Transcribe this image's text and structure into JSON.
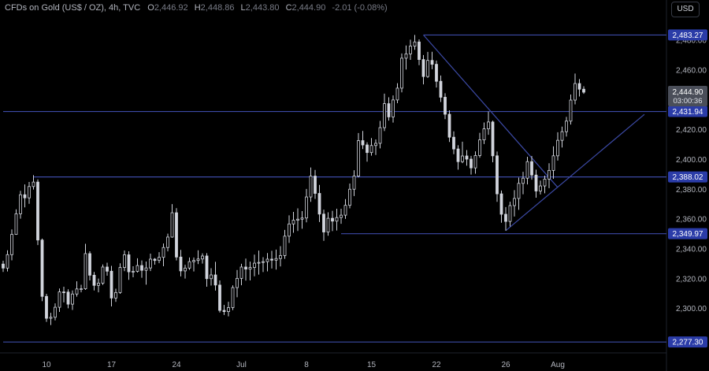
{
  "header": {
    "symbol": "CFDs on Gold (US$ / OZ), 4h, TVC",
    "open_label": "O",
    "open": "2,446.92",
    "high_label": "H",
    "high": "2,448.86",
    "low_label": "L",
    "low": "2,443.80",
    "close_label": "C",
    "close": "2,444.90",
    "change": "-2.01 (-0.08%)"
  },
  "currency_button": "USD",
  "colors": {
    "background": "#000000",
    "candle_up": "#d1d4dc",
    "candle_down": "#d1d4dc",
    "level_line": "#3c4aa6",
    "level_badge": "#2b3ca8",
    "price_badge": "#4a4e59",
    "axis_text": "#b2b5be"
  },
  "chart_data": {
    "type": "candlestick",
    "title": "CFDs on Gold (US$ / OZ), 4h, TVC",
    "ylim": [
      2270,
      2493
    ],
    "y_ticks": [
      2300,
      2320,
      2340,
      2360,
      2380,
      2400,
      2420,
      2440,
      2460,
      2480
    ],
    "y_tick_labels": [
      "2,300.00",
      "2,320.00",
      "2,340.00",
      "2,360.00",
      "2,380.00",
      "2,400.00",
      "2,420.00",
      "2,440.00",
      "2,460.00",
      "2,480.00"
    ],
    "x_ticks": [
      {
        "label": "10",
        "bar": 10
      },
      {
        "label": "17",
        "bar": 25
      },
      {
        "label": "24",
        "bar": 40
      },
      {
        "label": "Jul",
        "bar": 55
      },
      {
        "label": "8",
        "bar": 70
      },
      {
        "label": "15",
        "bar": 85
      },
      {
        "label": "22",
        "bar": 100
      },
      {
        "label": "26",
        "bar": 116
      },
      {
        "label": "Aug",
        "bar": 128
      }
    ],
    "bar_count": 135,
    "last_price": "2,444.90",
    "countdown": "03:00:36",
    "levels": [
      {
        "value": 2483.27,
        "label": "2,483.27",
        "from_bar": 97
      },
      {
        "value": 2431.94,
        "label": "2,431.94",
        "from_bar": 0
      },
      {
        "value": 2388.02,
        "label": "2,388.02",
        "from_bar": 7
      },
      {
        "value": 2349.97,
        "label": "2,349.97",
        "from_bar": 78
      },
      {
        "value": 2277.3,
        "label": "2,277.30",
        "from_bar": 0
      }
    ],
    "trendlines": [
      {
        "from": {
          "bar": 97,
          "value": 2483.27
        },
        "to": {
          "bar": 128,
          "value": 2381
        }
      },
      {
        "from": {
          "bar": 116,
          "value": 2352
        },
        "to": {
          "bar": 148,
          "value": 2430
        }
      }
    ],
    "ohlc": [
      [
        2329.6,
        2331.8,
        2324.3,
        2326.9
      ],
      [
        2326.9,
        2338.8,
        2324.6,
        2335.9
      ],
      [
        2335.9,
        2352.8,
        2332.1,
        2349.5
      ],
      [
        2349.5,
        2366.3,
        2349.2,
        2363.3
      ],
      [
        2363.3,
        2378.7,
        2360.0,
        2376.1
      ],
      [
        2376.1,
        2383.0,
        2367.6,
        2374.0
      ],
      [
        2374.0,
        2384.7,
        2370.0,
        2381.6
      ],
      [
        2381.6,
        2389.2,
        2379.6,
        2384.6
      ],
      [
        2384.6,
        2386.4,
        2342.3,
        2345.7
      ],
      [
        2345.7,
        2346.7,
        2304.7,
        2307.9
      ],
      [
        2307.9,
        2309.6,
        2290.8,
        2293.2
      ],
      [
        2293.2,
        2296.9,
        2288.7,
        2293.9
      ],
      [
        2293.9,
        2303.2,
        2291.8,
        2300.6
      ],
      [
        2300.6,
        2313.2,
        2297.5,
        2310.9
      ],
      [
        2310.9,
        2314.4,
        2303.9,
        2310.8
      ],
      [
        2310.8,
        2312.7,
        2299.9,
        2302.7
      ],
      [
        2302.7,
        2311.9,
        2298.8,
        2309.5
      ],
      [
        2309.5,
        2318.0,
        2307.7,
        2312.9
      ],
      [
        2312.9,
        2315.7,
        2310.6,
        2313.0
      ],
      [
        2313.0,
        2343.2,
        2312.3,
        2336.6
      ],
      [
        2336.6,
        2338.2,
        2318.6,
        2322.1
      ],
      [
        2322.1,
        2324.3,
        2311.9,
        2315.3
      ],
      [
        2315.3,
        2319.9,
        2310.6,
        2316.8
      ],
      [
        2316.8,
        2329.3,
        2315.6,
        2327.6
      ],
      [
        2327.6,
        2330.5,
        2321.8,
        2324.8
      ],
      [
        2324.8,
        2328.4,
        2301.2,
        2306.8
      ],
      [
        2306.8,
        2313.1,
        2304.2,
        2310.5
      ],
      [
        2310.5,
        2330.1,
        2309.6,
        2327.3
      ],
      [
        2327.3,
        2338.7,
        2324.8,
        2335.8
      ],
      [
        2335.8,
        2338.2,
        2319.0,
        2324.4
      ],
      [
        2324.4,
        2328.1,
        2320.7,
        2324.7
      ],
      [
        2324.7,
        2333.5,
        2323.9,
        2328.6
      ],
      [
        2328.6,
        2332.0,
        2320.4,
        2325.4
      ],
      [
        2325.4,
        2331.3,
        2315.8,
        2327.0
      ],
      [
        2327.0,
        2336.6,
        2324.9,
        2332.9
      ],
      [
        2332.9,
        2333.6,
        2329.2,
        2332.0
      ],
      [
        2332.0,
        2337.6,
        2330.2,
        2334.1
      ],
      [
        2334.1,
        2343.4,
        2328.1,
        2340.7
      ],
      [
        2340.7,
        2350.0,
        2338.1,
        2347.7
      ],
      [
        2347.7,
        2369.8,
        2347.3,
        2364.0
      ],
      [
        2364.0,
        2367.1,
        2332.0,
        2334.3
      ],
      [
        2334.3,
        2339.1,
        2321.3,
        2325.0
      ],
      [
        2325.0,
        2329.1,
        2319.9,
        2326.9
      ],
      [
        2326.9,
        2334.0,
        2325.7,
        2331.2
      ],
      [
        2331.2,
        2334.0,
        2324.6,
        2332.0
      ],
      [
        2332.0,
        2338.8,
        2329.6,
        2333.0
      ],
      [
        2333.0,
        2336.8,
        2329.9,
        2335.0
      ],
      [
        2335.0,
        2336.9,
        2314.4,
        2319.8
      ],
      [
        2319.8,
        2326.8,
        2315.2,
        2322.3
      ],
      [
        2322.3,
        2331.1,
        2311.8,
        2315.5
      ],
      [
        2315.5,
        2318.6,
        2297.1,
        2298.5
      ],
      [
        2298.5,
        2302.2,
        2295.4,
        2297.7
      ],
      [
        2297.7,
        2304.3,
        2294.5,
        2300.4
      ],
      [
        2300.4,
        2315.3,
        2298.7,
        2313.8
      ],
      [
        2313.8,
        2325.6,
        2307.3,
        2320.0
      ],
      [
        2320.0,
        2329.8,
        2315.4,
        2327.6
      ],
      [
        2327.6,
        2333.3,
        2318.5,
        2326.2
      ],
      [
        2326.2,
        2331.2,
        2318.6,
        2327.3
      ],
      [
        2327.3,
        2335.9,
        2321.4,
        2330.2
      ],
      [
        2330.2,
        2338.6,
        2322.5,
        2330.7
      ],
      [
        2330.7,
        2334.2,
        2324.2,
        2331.2
      ],
      [
        2331.2,
        2337.0,
        2324.7,
        2332.9
      ],
      [
        2332.9,
        2338.5,
        2326.6,
        2332.2
      ],
      [
        2332.2,
        2339.3,
        2325.9,
        2333.3
      ],
      [
        2333.3,
        2341.6,
        2328.0,
        2335.3
      ],
      [
        2335.3,
        2352.5,
        2333.1,
        2348.3
      ],
      [
        2348.3,
        2362.3,
        2343.8,
        2356.5
      ],
      [
        2356.5,
        2364.6,
        2350.6,
        2359.0
      ],
      [
        2359.0,
        2367.0,
        2351.8,
        2359.7
      ],
      [
        2359.7,
        2365.1,
        2353.3,
        2360.5
      ],
      [
        2360.5,
        2380.0,
        2357.6,
        2374.6
      ],
      [
        2374.6,
        2394.4,
        2371.3,
        2388.6
      ],
      [
        2388.6,
        2392.7,
        2373.3,
        2377.0
      ],
      [
        2377.0,
        2382.7,
        2357.8,
        2363.1
      ],
      [
        2363.1,
        2366.1,
        2345.2,
        2351.1
      ],
      [
        2351.1,
        2364.3,
        2348.6,
        2360.3
      ],
      [
        2360.3,
        2365.3,
        2351.7,
        2358.4
      ],
      [
        2358.4,
        2366.7,
        2352.1,
        2360.8
      ],
      [
        2360.8,
        2366.7,
        2356.6,
        2362.4
      ],
      [
        2362.4,
        2373.2,
        2359.9,
        2369.0
      ],
      [
        2369.0,
        2383.6,
        2367.0,
        2379.8
      ],
      [
        2379.8,
        2392.5,
        2375.2,
        2388.6
      ],
      [
        2388.6,
        2417.5,
        2387.7,
        2412.4
      ],
      [
        2412.4,
        2418.9,
        2406.7,
        2409.5
      ],
      [
        2409.5,
        2411.3,
        2398.3,
        2404.4
      ],
      [
        2404.4,
        2414.1,
        2402.3,
        2409.1
      ],
      [
        2409.1,
        2413.2,
        2402.8,
        2410.6
      ],
      [
        2410.6,
        2425.6,
        2407.2,
        2421.1
      ],
      [
        2421.1,
        2443.9,
        2418.8,
        2437.2
      ],
      [
        2437.2,
        2441.5,
        2425.8,
        2428.3
      ],
      [
        2428.3,
        2442.7,
        2424.5,
        2439.7
      ],
      [
        2439.7,
        2450.9,
        2437.5,
        2447.6
      ],
      [
        2447.6,
        2470.9,
        2444.8,
        2467.7
      ],
      [
        2467.7,
        2476.2,
        2460.1,
        2470.6
      ],
      [
        2470.6,
        2480.1,
        2466.6,
        2475.8
      ],
      [
        2475.8,
        2483.3,
        2473.3,
        2478.6
      ],
      [
        2478.6,
        2480.3,
        2463.0,
        2466.8
      ],
      [
        2466.8,
        2469.8,
        2450.1,
        2455.4
      ],
      [
        2455.4,
        2471.9,
        2454.5,
        2466.2
      ],
      [
        2466.2,
        2472.0,
        2460.3,
        2463.6
      ],
      [
        2463.6,
        2466.1,
        2448.0,
        2452.2
      ],
      [
        2452.2,
        2456.1,
        2438.3,
        2441.5
      ],
      [
        2441.5,
        2444.2,
        2426.8,
        2430.1
      ],
      [
        2430.1,
        2432.7,
        2411.5,
        2414.7
      ],
      [
        2414.7,
        2418.6,
        2403.3,
        2406.8
      ],
      [
        2406.8,
        2409.3,
        2392.9,
        2398.3
      ],
      [
        2398.3,
        2411.7,
        2397.3,
        2402.1
      ],
      [
        2402.1,
        2406.1,
        2395.6,
        2400.0
      ],
      [
        2400.0,
        2402.2,
        2389.6,
        2394.1
      ],
      [
        2394.1,
        2405.2,
        2390.2,
        2402.4
      ],
      [
        2402.4,
        2417.6,
        2400.9,
        2412.9
      ],
      [
        2412.9,
        2424.6,
        2410.1,
        2420.3
      ],
      [
        2420.3,
        2431.9,
        2416.3,
        2424.9
      ],
      [
        2424.9,
        2425.8,
        2397.9,
        2402.2
      ],
      [
        2402.2,
        2405.1,
        2371.3,
        2376.7
      ],
      [
        2376.7,
        2378.9,
        2357.3,
        2363.0
      ],
      [
        2363.0,
        2367.8,
        2352.0,
        2358.2
      ],
      [
        2358.2,
        2371.4,
        2354.8,
        2368.8
      ],
      [
        2368.8,
        2379.2,
        2361.5,
        2373.6
      ],
      [
        2373.6,
        2387.6,
        2366.0,
        2383.7
      ],
      [
        2383.7,
        2391.5,
        2376.4,
        2387.2
      ],
      [
        2387.2,
        2401.6,
        2383.0,
        2398.3
      ],
      [
        2398.3,
        2402.1,
        2386.2,
        2389.3
      ],
      [
        2389.3,
        2392.9,
        2374.1,
        2378.6
      ],
      [
        2378.6,
        2385.6,
        2376.3,
        2382.0
      ],
      [
        2382.0,
        2388.9,
        2377.1,
        2386.6
      ],
      [
        2386.6,
        2397.2,
        2380.5,
        2392.4
      ],
      [
        2392.4,
        2408.6,
        2386.8,
        2402.2
      ],
      [
        2402.2,
        2418.0,
        2399.0,
        2412.6
      ],
      [
        2412.6,
        2421.8,
        2407.8,
        2418.4
      ],
      [
        2418.4,
        2428.3,
        2415.1,
        2425.5
      ],
      [
        2425.5,
        2443.3,
        2423.2,
        2439.6
      ],
      [
        2439.6,
        2457.4,
        2436.7,
        2450.7
      ],
      [
        2450.7,
        2453.7,
        2442.0,
        2446.9
      ],
      [
        2446.9,
        2448.9,
        2443.8,
        2444.9
      ]
    ]
  }
}
